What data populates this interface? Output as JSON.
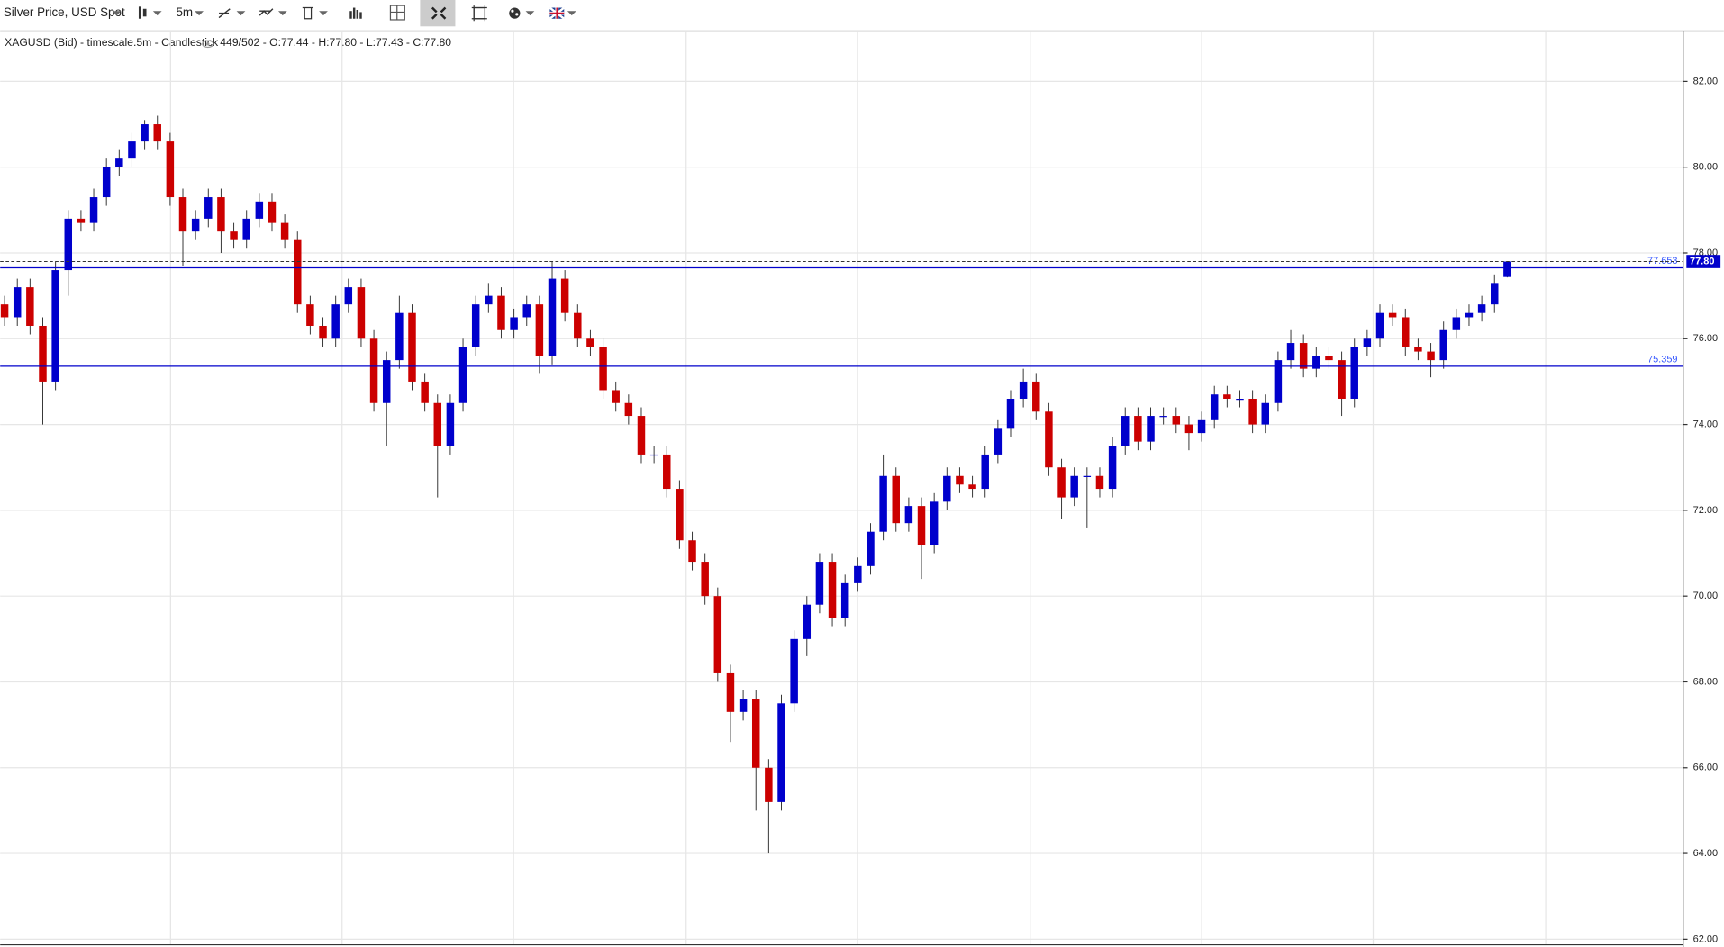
{
  "toolbar": {
    "instrument": "Silver Price, USD Spot",
    "timeframe": "5m"
  },
  "chart_data": {
    "type": "candlestick",
    "title": "XAGUSD (Bid) - timescale.5m - Candlestick",
    "info": "449/502 - O:77.44 - H:77.80 - L:77.43 - C:77.80",
    "up_color": "#0000cc",
    "down_color": "#cc0000",
    "ylim": [
      61.87,
      83.18
    ],
    "yticks": [
      {
        "value": 62,
        "label": "62.00"
      },
      {
        "value": 64,
        "label": "64.00"
      },
      {
        "value": 66,
        "label": "66.00"
      },
      {
        "value": 68,
        "label": "68.00"
      },
      {
        "value": 70,
        "label": "70.00"
      },
      {
        "value": 72,
        "label": "72.00"
      },
      {
        "value": 74,
        "label": "74.00"
      },
      {
        "value": 76,
        "label": "76.00"
      },
      {
        "value": 78,
        "label": "78.00"
      },
      {
        "value": 80,
        "label": "80.00"
      },
      {
        "value": 82,
        "label": "82.00"
      }
    ],
    "grid": true,
    "price_lines": [
      {
        "value": 77.653,
        "color": "#0000cc"
      },
      {
        "value": 75.359,
        "color": "#0000cc"
      }
    ],
    "last_price": {
      "value": 77.8,
      "label": "77.80"
    },
    "open": [
      76.8,
      76.5,
      77.2,
      76.3,
      75.0,
      77.6,
      78.8,
      78.7,
      79.3,
      80.0,
      80.2,
      80.6,
      81.0,
      80.6,
      79.3,
      78.5,
      78.8,
      79.3,
      78.5,
      78.3,
      78.8,
      79.2,
      78.7,
      78.3,
      76.8,
      76.3,
      76.0,
      76.8,
      77.2,
      76.0,
      74.5,
      75.5,
      76.6,
      75.0,
      74.5,
      73.5,
      74.5,
      75.8,
      76.8,
      77.0,
      76.2,
      76.5,
      76.8,
      75.6,
      77.4,
      76.6,
      76.0,
      75.8,
      74.8,
      74.5,
      74.2,
      73.3,
      73.3,
      72.5,
      71.3,
      70.8,
      70.0,
      68.2,
      67.3,
      67.6,
      66.0,
      65.2,
      67.5,
      69.0,
      69.8,
      70.8,
      69.5,
      70.3,
      70.7,
      71.5,
      72.8,
      71.7,
      72.1,
      71.2,
      72.2,
      72.8,
      72.6,
      72.5,
      73.3,
      73.9,
      74.6,
      75.0,
      74.3,
      73.0,
      72.3,
      72.8,
      72.8,
      72.5,
      73.5,
      74.2,
      73.6,
      74.2,
      74.2,
      74.0,
      73.8,
      74.1,
      74.7,
      74.6,
      74.6,
      74.0,
      74.5,
      75.5,
      75.9,
      75.3,
      75.6,
      75.5,
      74.6,
      75.8,
      76.0,
      76.6,
      76.5,
      75.8,
      75.7,
      75.5,
      76.2,
      76.5,
      76.6,
      76.8,
      77.44
    ],
    "high": [
      77.0,
      77.4,
      77.4,
      76.5,
      77.8,
      79.0,
      79.0,
      79.5,
      80.2,
      80.4,
      80.8,
      81.1,
      81.2,
      80.8,
      79.5,
      79.0,
      79.5,
      79.5,
      78.7,
      79.0,
      79.4,
      79.4,
      78.9,
      78.5,
      77.0,
      76.5,
      77.0,
      77.4,
      77.4,
      76.2,
      75.7,
      77.0,
      76.8,
      75.2,
      74.7,
      74.7,
      76.0,
      77.0,
      77.3,
      77.2,
      76.7,
      77.0,
      77.0,
      77.8,
      77.6,
      76.8,
      76.2,
      76.0,
      75.0,
      74.7,
      74.4,
      73.5,
      73.5,
      72.7,
      71.5,
      71.0,
      70.2,
      68.4,
      67.8,
      67.8,
      66.2,
      67.7,
      69.2,
      70.0,
      71.0,
      71.0,
      70.5,
      70.9,
      71.7,
      73.3,
      73.0,
      72.3,
      72.3,
      72.4,
      73.0,
      73.0,
      72.8,
      73.5,
      74.1,
      74.8,
      75.3,
      75.2,
      74.5,
      73.2,
      73.0,
      73.0,
      73.0,
      73.7,
      74.4,
      74.4,
      74.4,
      74.4,
      74.4,
      74.2,
      74.3,
      74.9,
      74.9,
      74.8,
      74.8,
      74.7,
      75.7,
      76.2,
      76.1,
      75.8,
      75.8,
      75.7,
      76.0,
      76.2,
      76.8,
      76.8,
      76.7,
      76.0,
      75.9,
      76.4,
      76.7,
      76.8,
      77.0,
      77.5,
      77.8
    ],
    "low": [
      76.3,
      76.3,
      76.1,
      74.0,
      74.8,
      77.0,
      78.5,
      78.5,
      79.1,
      79.8,
      80.0,
      80.4,
      80.4,
      79.1,
      77.7,
      78.3,
      78.6,
      78.0,
      78.1,
      78.1,
      78.6,
      78.5,
      78.1,
      76.6,
      76.1,
      75.8,
      75.8,
      76.6,
      75.8,
      74.3,
      73.5,
      75.3,
      74.8,
      74.3,
      72.3,
      73.3,
      74.3,
      75.6,
      76.6,
      76.0,
      76.0,
      76.3,
      75.2,
      75.4,
      76.4,
      75.8,
      75.6,
      74.6,
      74.3,
      74.0,
      73.1,
      73.1,
      72.3,
      71.1,
      70.6,
      69.8,
      68.0,
      66.6,
      67.1,
      65.0,
      64.0,
      65.0,
      67.3,
      68.6,
      69.6,
      69.3,
      69.3,
      70.1,
      70.5,
      71.3,
      71.5,
      71.5,
      70.4,
      71.0,
      72.0,
      72.4,
      72.3,
      72.3,
      73.1,
      73.7,
      74.4,
      74.1,
      72.8,
      71.8,
      72.1,
      71.6,
      72.3,
      72.3,
      73.3,
      73.4,
      73.4,
      74.0,
      73.8,
      73.4,
      73.6,
      73.9,
      74.4,
      74.4,
      73.8,
      73.8,
      74.3,
      75.3,
      75.1,
      75.1,
      75.3,
      74.2,
      74.4,
      75.6,
      75.8,
      76.3,
      75.6,
      75.5,
      75.1,
      75.3,
      76.0,
      76.3,
      76.4,
      76.6,
      77.43
    ],
    "close": [
      76.5,
      77.2,
      76.3,
      75.0,
      77.6,
      78.8,
      78.7,
      79.3,
      80.0,
      80.2,
      80.6,
      81.0,
      80.6,
      79.3,
      78.5,
      78.8,
      79.3,
      78.5,
      78.3,
      78.8,
      79.2,
      78.7,
      78.3,
      76.8,
      76.3,
      76.0,
      76.8,
      77.2,
      76.0,
      74.5,
      75.5,
      76.6,
      75.0,
      74.5,
      73.5,
      74.5,
      75.8,
      76.8,
      77.0,
      76.2,
      76.5,
      76.8,
      75.6,
      77.4,
      76.6,
      76.0,
      75.8,
      74.8,
      74.5,
      74.2,
      73.3,
      73.3,
      72.5,
      71.3,
      70.8,
      70.0,
      68.2,
      67.3,
      67.6,
      66.0,
      65.2,
      67.5,
      69.0,
      69.8,
      70.8,
      69.5,
      70.3,
      70.7,
      71.5,
      72.8,
      71.7,
      72.1,
      71.2,
      72.2,
      72.8,
      72.6,
      72.5,
      73.3,
      73.9,
      74.6,
      75.0,
      74.3,
      73.0,
      72.3,
      72.8,
      72.8,
      72.5,
      73.5,
      74.2,
      73.6,
      74.2,
      74.2,
      74.0,
      73.8,
      74.1,
      74.7,
      74.6,
      74.6,
      74.0,
      74.5,
      75.5,
      75.9,
      75.3,
      75.6,
      75.5,
      74.6,
      75.8,
      76.0,
      76.6,
      76.5,
      75.8,
      75.7,
      75.5,
      76.2,
      76.5,
      76.6,
      76.8,
      77.3,
      77.8
    ]
  }
}
